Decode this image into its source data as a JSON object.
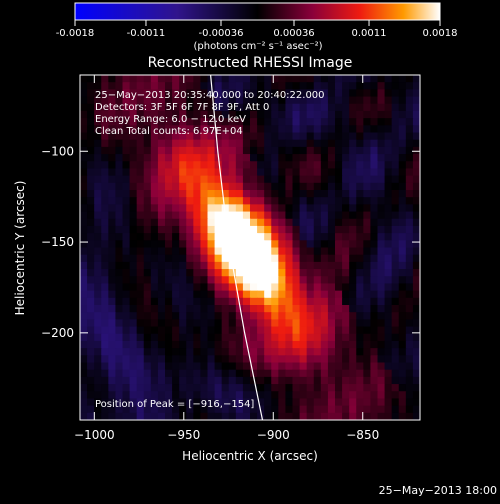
{
  "colorbar": {
    "tick_labels": [
      "-0.0018",
      "-0.0011",
      "-0.00036",
      "0.00036",
      "0.0011",
      "0.0018"
    ],
    "tick_values": [
      -0.0018,
      -0.0011,
      -0.00036,
      0.00036,
      0.0011,
      0.0018
    ],
    "range": [
      -0.0018,
      0.0018
    ],
    "units_label": "(photons cm⁻² s⁻¹ asec⁻²)"
  },
  "chart_data": {
    "type": "heatmap",
    "title": "Reconstructed RHESSI Image",
    "xlabel": "Heliocentric X (arcsec)",
    "ylabel": "Heliocentric Y (arcsec)",
    "xlim": [
      -1008,
      -818
    ],
    "ylim": [
      -248,
      -58
    ],
    "x_ticks": [
      -1000,
      -950,
      -900,
      -850
    ],
    "x_tick_labels": [
      "−1000",
      "−950",
      "−900",
      "−850"
    ],
    "y_ticks": [
      -100,
      -150,
      -200
    ],
    "y_tick_labels": [
      "−100",
      "−150",
      "−200"
    ],
    "annotations": [
      "25−May−2013 20:35:40.000 to 20:40:22.000",
      "Detectors: 3F 5F 6F 7F 8F 9F, Att 0",
      "Energy Range: 6.0 − 12.0 keV",
      "Clean    Total counts: 6.97E+04"
    ],
    "peak_label": "Position of Peak = [−916,−154]",
    "peak_position": [
      -916,
      -154
    ],
    "limb_points": [
      [
        -935,
        -58
      ],
      [
        -931,
        -100
      ],
      [
        -925,
        -150
      ],
      [
        -916,
        -200
      ],
      [
        -906,
        -248
      ]
    ],
    "grid": false,
    "colormap": [
      "#0000ff",
      "#1a0a7a",
      "#000000",
      "#7a0040",
      "#e61010",
      "#ff8c00",
      "#ffffff"
    ]
  },
  "footer": {
    "timestamp": "25−May−2013 18:00"
  }
}
